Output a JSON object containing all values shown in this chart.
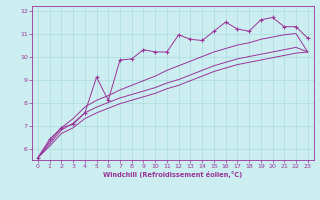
{
  "title": "",
  "xlabel": "Windchill (Refroidissement éolien,°C)",
  "ylabel": "",
  "bg_color": "#cceef0",
  "line_color": "#993399",
  "grid_color": "#aadddd",
  "xlim": [
    -0.5,
    23.5
  ],
  "ylim": [
    5.5,
    12.2
  ],
  "yticks": [
    6,
    7,
    8,
    9,
    10,
    11,
    12
  ],
  "xticks": [
    0,
    1,
    2,
    3,
    4,
    5,
    6,
    7,
    8,
    9,
    10,
    11,
    12,
    13,
    14,
    15,
    16,
    17,
    18,
    19,
    20,
    21,
    22,
    23
  ],
  "series1_marked": [
    [
      0,
      5.6
    ],
    [
      1,
      6.4
    ],
    [
      2,
      6.9
    ],
    [
      3,
      7.05
    ],
    [
      4,
      7.55
    ],
    [
      5,
      9.1
    ],
    [
      6,
      8.1
    ],
    [
      7,
      9.85
    ],
    [
      8,
      9.9
    ],
    [
      9,
      10.3
    ],
    [
      10,
      10.2
    ],
    [
      11,
      10.2
    ],
    [
      12,
      10.95
    ],
    [
      13,
      10.75
    ],
    [
      14,
      10.7
    ],
    [
      15,
      11.1
    ],
    [
      16,
      11.5
    ],
    [
      17,
      11.2
    ],
    [
      18,
      11.1
    ],
    [
      19,
      11.6
    ],
    [
      20,
      11.7
    ],
    [
      21,
      11.3
    ],
    [
      22,
      11.3
    ],
    [
      23,
      10.8
    ]
  ],
  "series2_smooth_top": [
    [
      0,
      5.6
    ],
    [
      1,
      6.3
    ],
    [
      2,
      6.9
    ],
    [
      3,
      7.3
    ],
    [
      4,
      7.8
    ],
    [
      5,
      8.1
    ],
    [
      6,
      8.3
    ],
    [
      7,
      8.55
    ],
    [
      8,
      8.75
    ],
    [
      9,
      8.95
    ],
    [
      10,
      9.15
    ],
    [
      11,
      9.4
    ],
    [
      12,
      9.6
    ],
    [
      13,
      9.8
    ],
    [
      14,
      10.0
    ],
    [
      15,
      10.2
    ],
    [
      16,
      10.35
    ],
    [
      17,
      10.5
    ],
    [
      18,
      10.6
    ],
    [
      19,
      10.75
    ],
    [
      20,
      10.85
    ],
    [
      21,
      10.95
    ],
    [
      22,
      11.0
    ],
    [
      23,
      10.2
    ]
  ],
  "series3_smooth_mid": [
    [
      0,
      5.6
    ],
    [
      1,
      6.2
    ],
    [
      2,
      6.8
    ],
    [
      3,
      7.1
    ],
    [
      4,
      7.55
    ],
    [
      5,
      7.8
    ],
    [
      6,
      8.0
    ],
    [
      7,
      8.2
    ],
    [
      8,
      8.35
    ],
    [
      9,
      8.5
    ],
    [
      10,
      8.65
    ],
    [
      11,
      8.85
    ],
    [
      12,
      9.0
    ],
    [
      13,
      9.2
    ],
    [
      14,
      9.4
    ],
    [
      15,
      9.6
    ],
    [
      16,
      9.75
    ],
    [
      17,
      9.9
    ],
    [
      18,
      10.0
    ],
    [
      19,
      10.1
    ],
    [
      20,
      10.2
    ],
    [
      21,
      10.3
    ],
    [
      22,
      10.4
    ],
    [
      23,
      10.2
    ]
  ],
  "series4_smooth_bot": [
    [
      0,
      5.6
    ],
    [
      1,
      6.1
    ],
    [
      2,
      6.65
    ],
    [
      3,
      6.9
    ],
    [
      4,
      7.3
    ],
    [
      5,
      7.55
    ],
    [
      6,
      7.75
    ],
    [
      7,
      7.95
    ],
    [
      8,
      8.1
    ],
    [
      9,
      8.25
    ],
    [
      10,
      8.4
    ],
    [
      11,
      8.6
    ],
    [
      12,
      8.75
    ],
    [
      13,
      8.95
    ],
    [
      14,
      9.15
    ],
    [
      15,
      9.35
    ],
    [
      16,
      9.5
    ],
    [
      17,
      9.65
    ],
    [
      18,
      9.75
    ],
    [
      19,
      9.85
    ],
    [
      20,
      9.95
    ],
    [
      21,
      10.05
    ],
    [
      22,
      10.15
    ],
    [
      23,
      10.2
    ]
  ]
}
